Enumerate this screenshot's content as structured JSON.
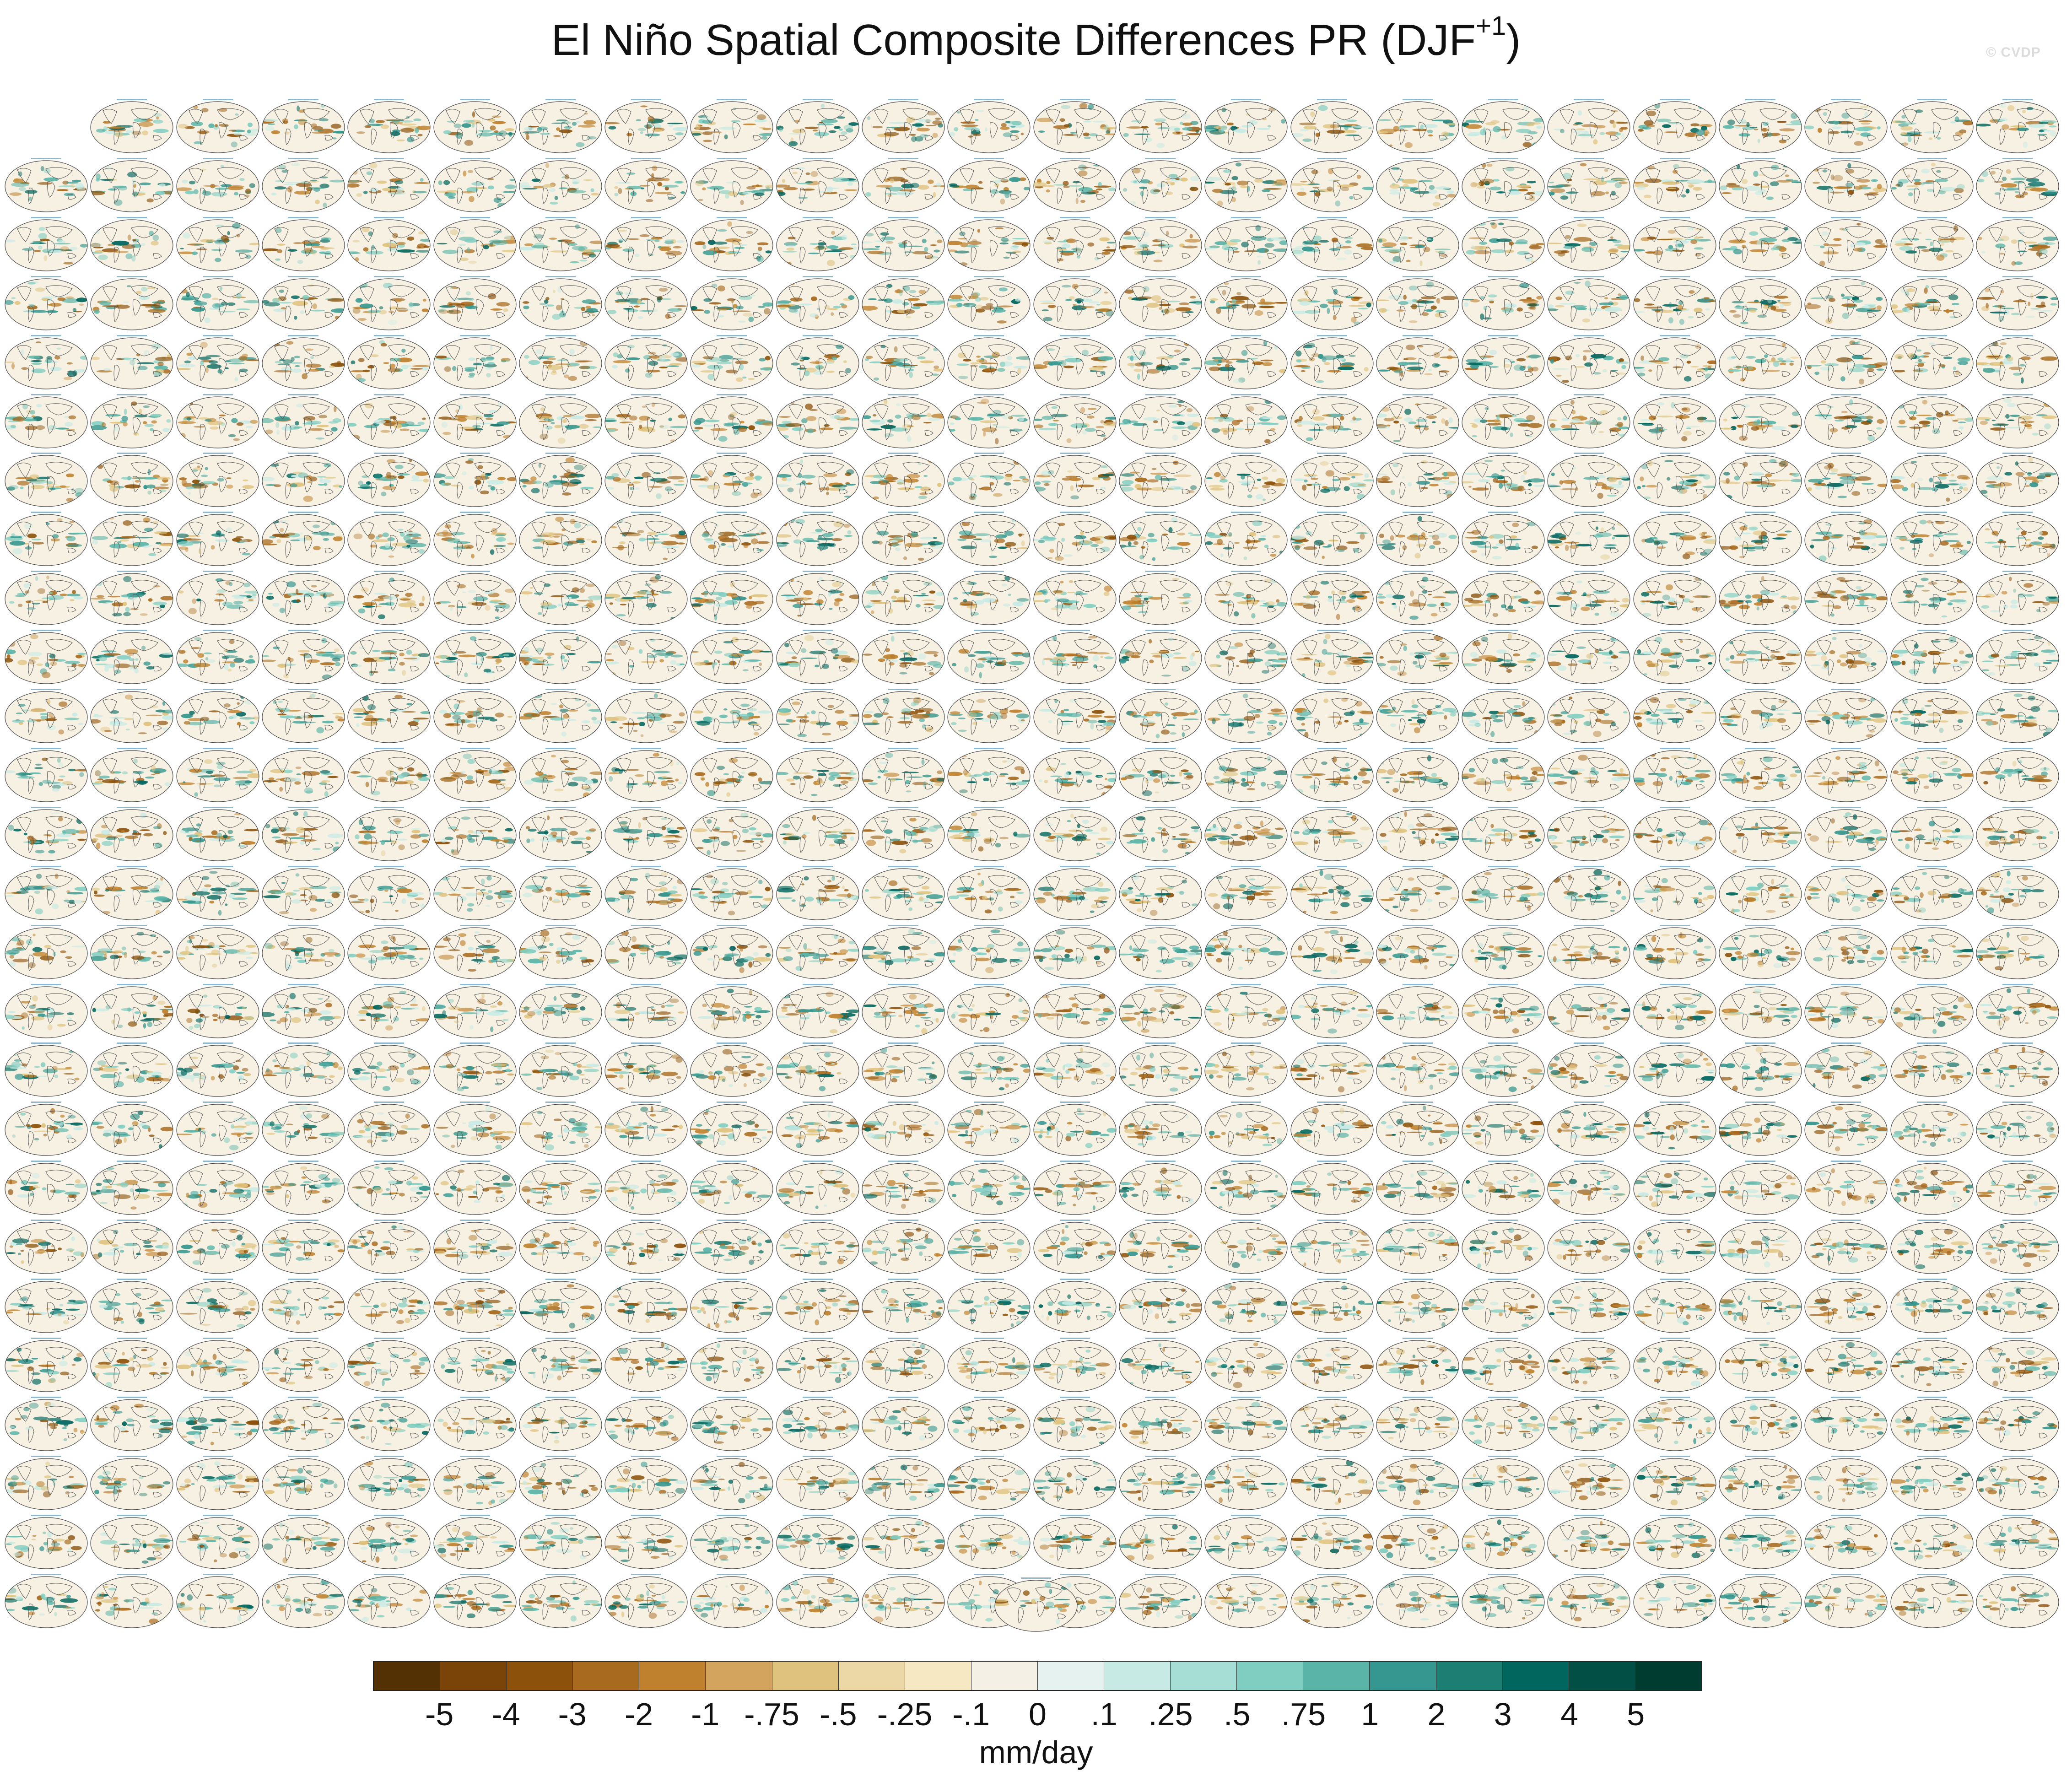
{
  "figure": {
    "title_main": "El Niño Spatial Composite Differences PR (DJF",
    "title_sup": "+1",
    "title_close": ")",
    "watermark": "© CVDP"
  },
  "panel_grid": {
    "rows": 26,
    "columns": 24,
    "first_row_columns_present": 23,
    "extra_panels_below": 1,
    "panel_type": "global map (ellipse projection) of precipitation composite difference",
    "colors": {
      "land_outline": "#555555",
      "ocean_base": "#f6f1e2"
    }
  },
  "colorbar": {
    "colors": [
      "#543005",
      "#7a4408",
      "#8c510a",
      "#a86a1e",
      "#bf812d",
      "#d3a45d",
      "#dfc27d",
      "#ecd7a6",
      "#f6e8c3",
      "#f5f0e6",
      "#e6f2ef",
      "#c7eae5",
      "#a6ddd5",
      "#80cdc1",
      "#5ab4a8",
      "#35978f",
      "#1d7f73",
      "#01665e",
      "#014f45",
      "#003c30"
    ],
    "labels": [
      "-5",
      "-4",
      "-3",
      "-2",
      "-1",
      "-.75",
      "-.5",
      "-.25",
      "-.1",
      "0",
      ".1",
      ".25",
      ".5",
      ".75",
      "1",
      "2",
      "3",
      "4",
      "5"
    ],
    "units": "mm/day"
  }
}
